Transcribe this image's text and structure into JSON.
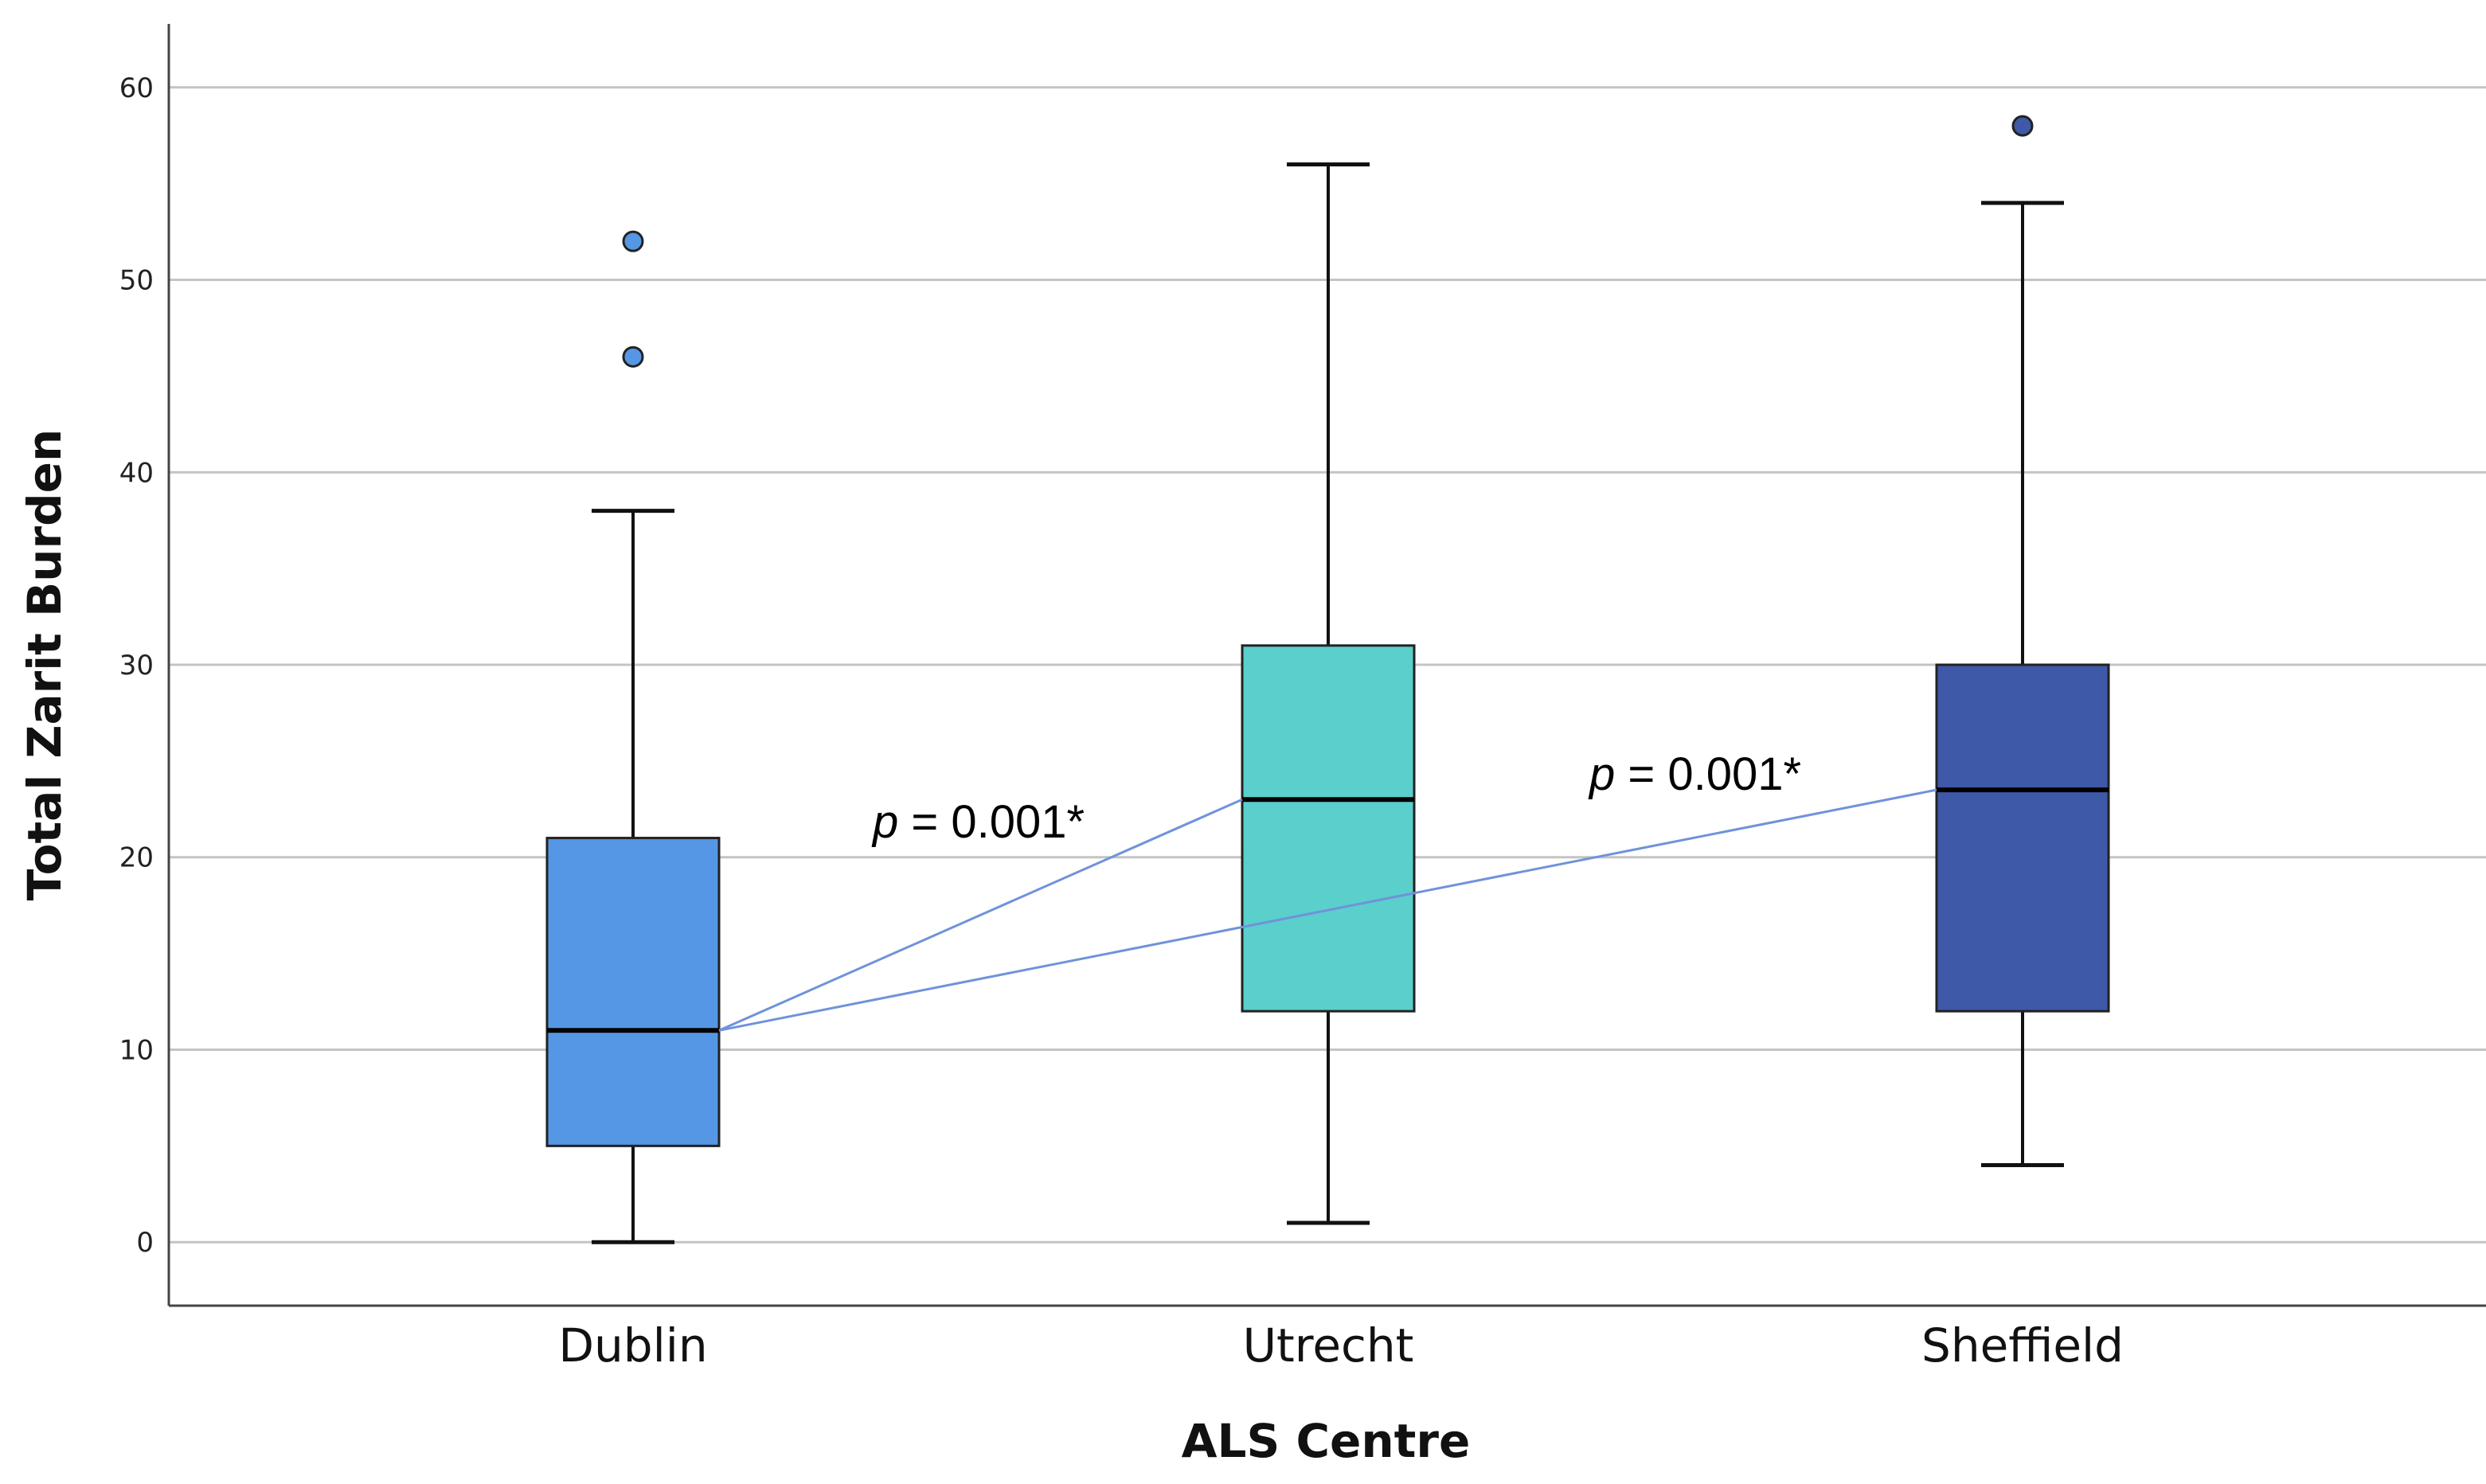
{
  "chart_data": {
    "type": "box",
    "xlabel": "ALS Centre",
    "ylabel": "Total Zarit Burden",
    "ylim": [
      -3.3,
      63.3
    ],
    "yticks": [
      0,
      10,
      20,
      30,
      40,
      50,
      60
    ],
    "grid": true,
    "categories": [
      "Dublin",
      "Utrecht",
      "Sheffield"
    ],
    "boxes": [
      {
        "category": "Dublin",
        "whisker_low": 0,
        "q1": 5,
        "median": 11,
        "q3": 21,
        "whisker_high": 38,
        "outliers": [
          46,
          52
        ],
        "color": "#5597e4"
      },
      {
        "category": "Utrecht",
        "whisker_low": 1,
        "q1": 12,
        "median": 23,
        "q3": 31,
        "whisker_high": 56,
        "outliers": [],
        "color": "#5bcfcc"
      },
      {
        "category": "Sheffield",
        "whisker_low": 4,
        "q1": 12,
        "median": 23.5,
        "q3": 30,
        "whisker_high": 54,
        "outliers": [
          58
        ],
        "color": "#3e59a8"
      }
    ],
    "annotations": [
      {
        "italic": "p",
        "text": " = 0.001*",
        "from": "Dublin",
        "to": "Utrecht"
      },
      {
        "italic": "p",
        "text": " = 0.001*",
        "from": "Dublin",
        "to": "Sheffield"
      }
    ],
    "connector_color": "#6f93da"
  }
}
